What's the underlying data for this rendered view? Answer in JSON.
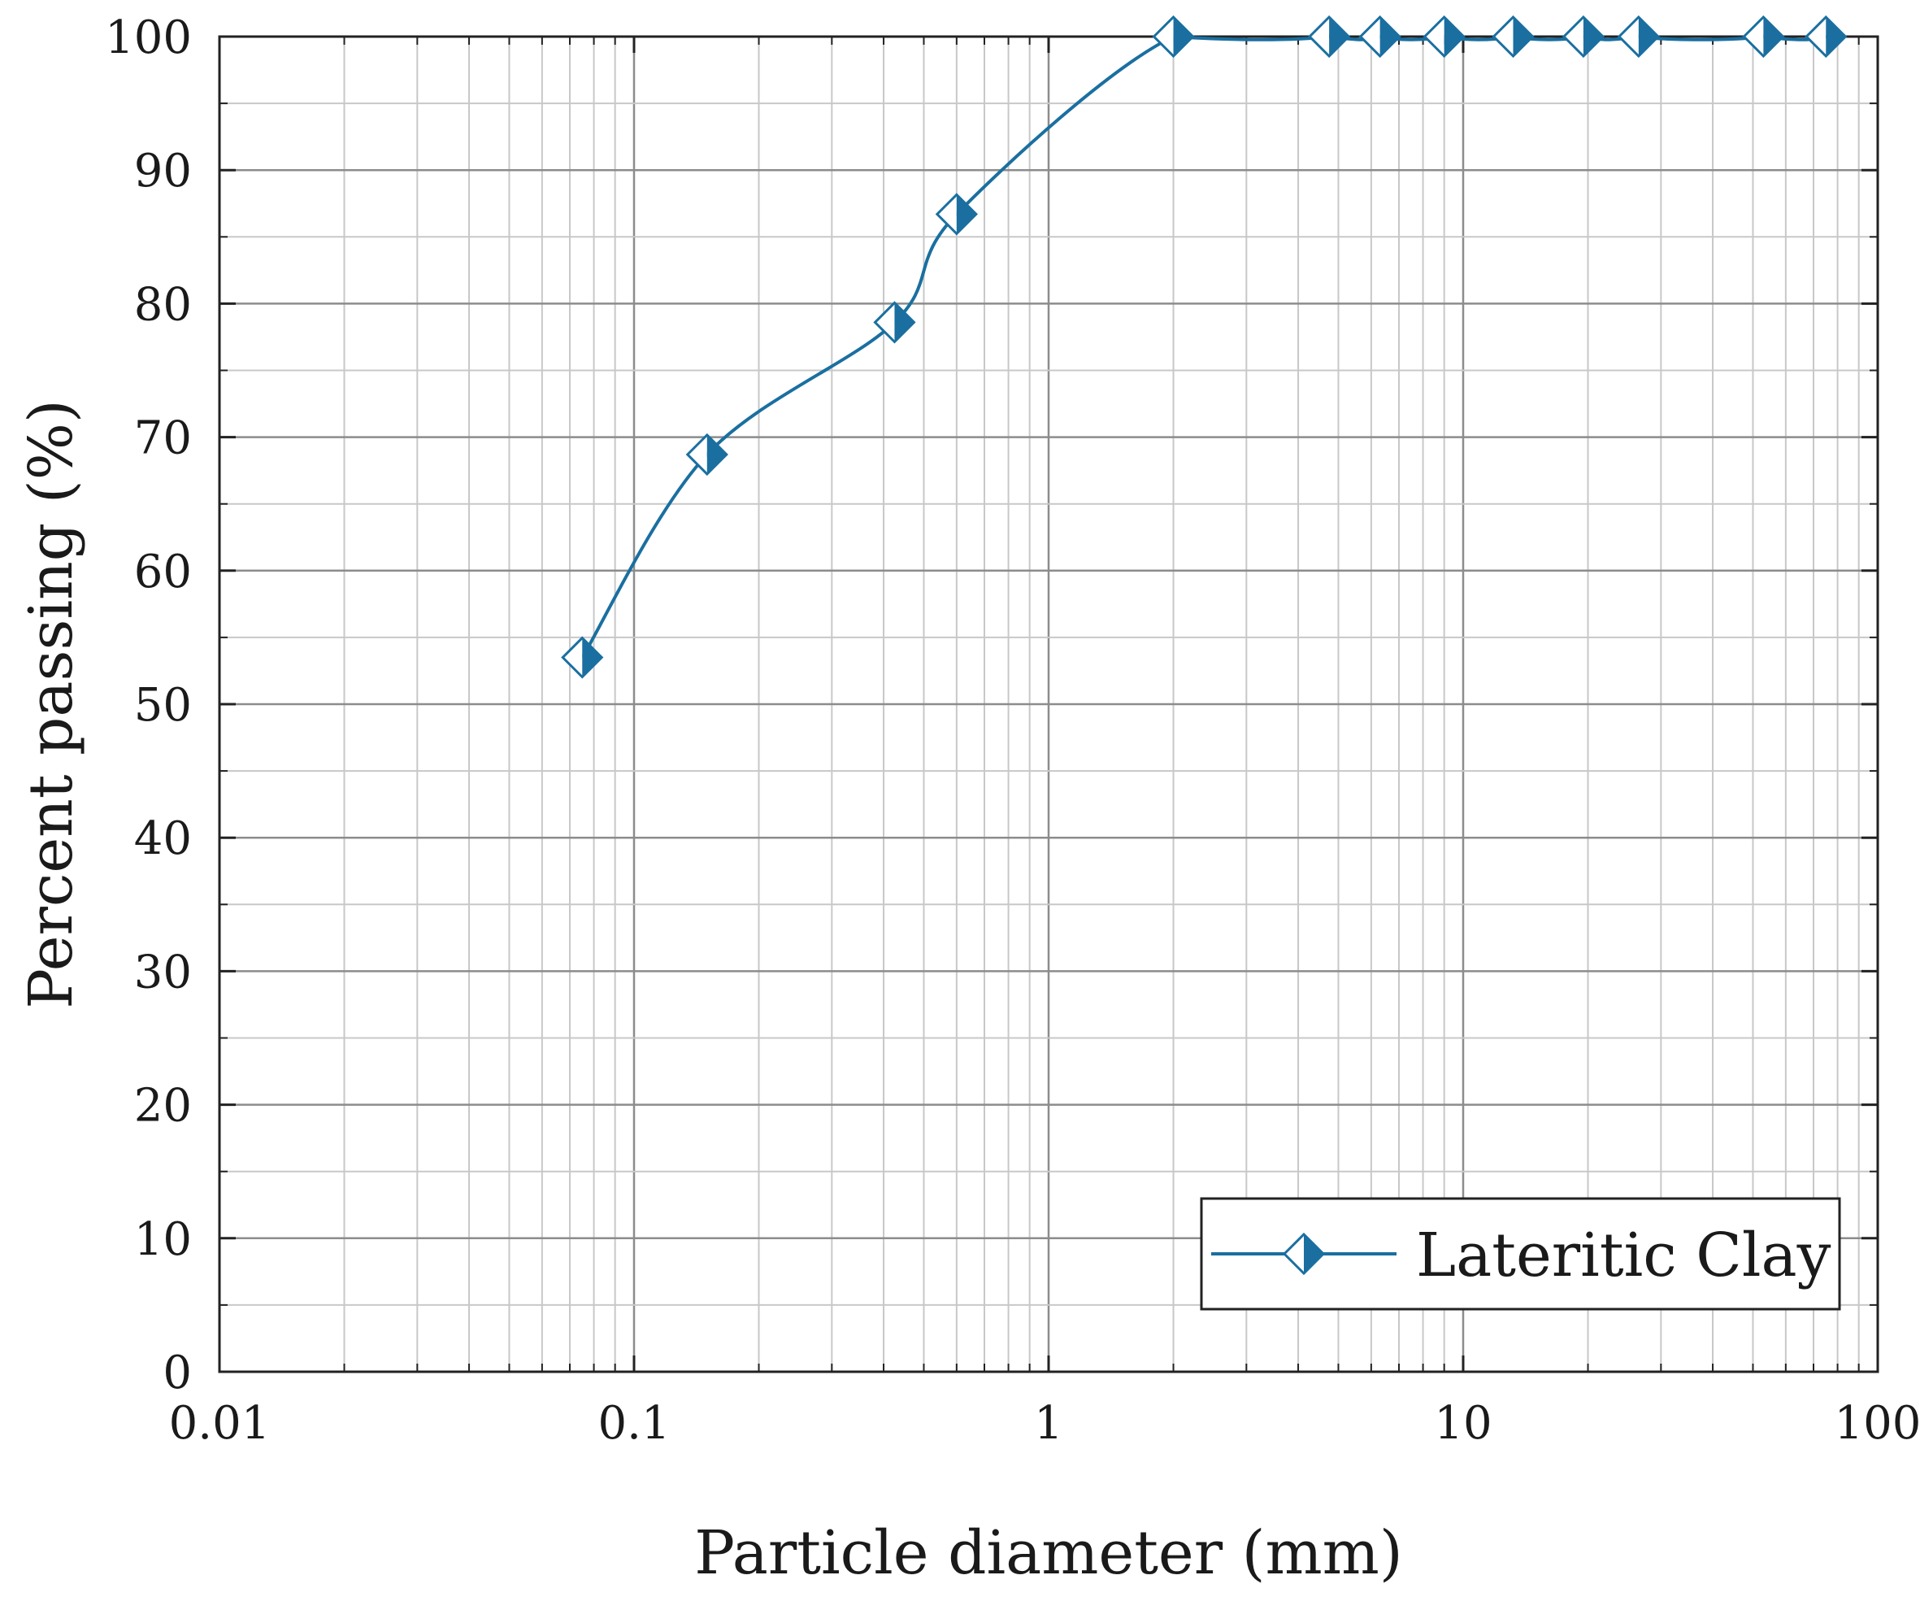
{
  "chart_data": {
    "type": "line",
    "title": "",
    "xlabel": "Particle diameter (mm)",
    "ylabel": "Percent passing (%)",
    "x_scale": "log",
    "xlim": [
      0.01,
      100
    ],
    "ylim": [
      0,
      100
    ],
    "grid": true,
    "legend_position": "bottom-right",
    "x_tick_labels": [
      "0.01",
      "0.1",
      "1",
      "10",
      "100"
    ],
    "y_tick_labels": [
      "0",
      "10",
      "20",
      "30",
      "40",
      "50",
      "60",
      "70",
      "80",
      "90",
      "100"
    ],
    "series": [
      {
        "name": "Lateritic Clay",
        "color": "#1a6fa0",
        "marker": "half-filled-diamond",
        "x": [
          0.075,
          0.15,
          0.425,
          0.6,
          2.0,
          4.75,
          6.3,
          9.0,
          13.2,
          19.5,
          26.5,
          53.0,
          75.0
        ],
        "y": [
          53.5,
          68.7,
          78.6,
          86.7,
          100,
          100,
          100,
          100,
          100,
          100,
          100,
          100,
          100
        ]
      }
    ]
  }
}
